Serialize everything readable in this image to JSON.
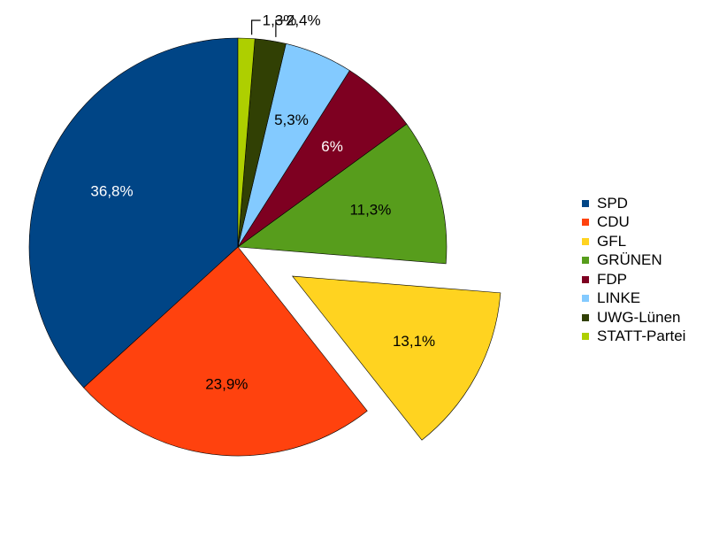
{
  "chart_data": {
    "type": "pie",
    "title": "",
    "categories": [
      "SPD",
      "CDU",
      "GFL",
      "GRÜNEN",
      "FDP",
      "LINKE",
      "UWG-Lünen",
      "STATT-Partei"
    ],
    "values": [
      36.8,
      23.9,
      13.1,
      11.3,
      6,
      5.3,
      2.4,
      1.3
    ],
    "data_labels": [
      "36,8%",
      "23,9%",
      "13,1%",
      "11,3%",
      "6%",
      "5,3%",
      "2,4%",
      "1,3%"
    ],
    "colors": [
      "#004586",
      "#ff420e",
      "#ffd320",
      "#579d1c",
      "#7e0021",
      "#83caff",
      "#314004",
      "#aecf00"
    ],
    "label_colors": [
      "#ffffff",
      "#000000",
      "#000000",
      "#000000",
      "#ffffff",
      "#000000",
      "#000000",
      "#000000"
    ],
    "exploded": "GFL",
    "legend_position": "right"
  }
}
